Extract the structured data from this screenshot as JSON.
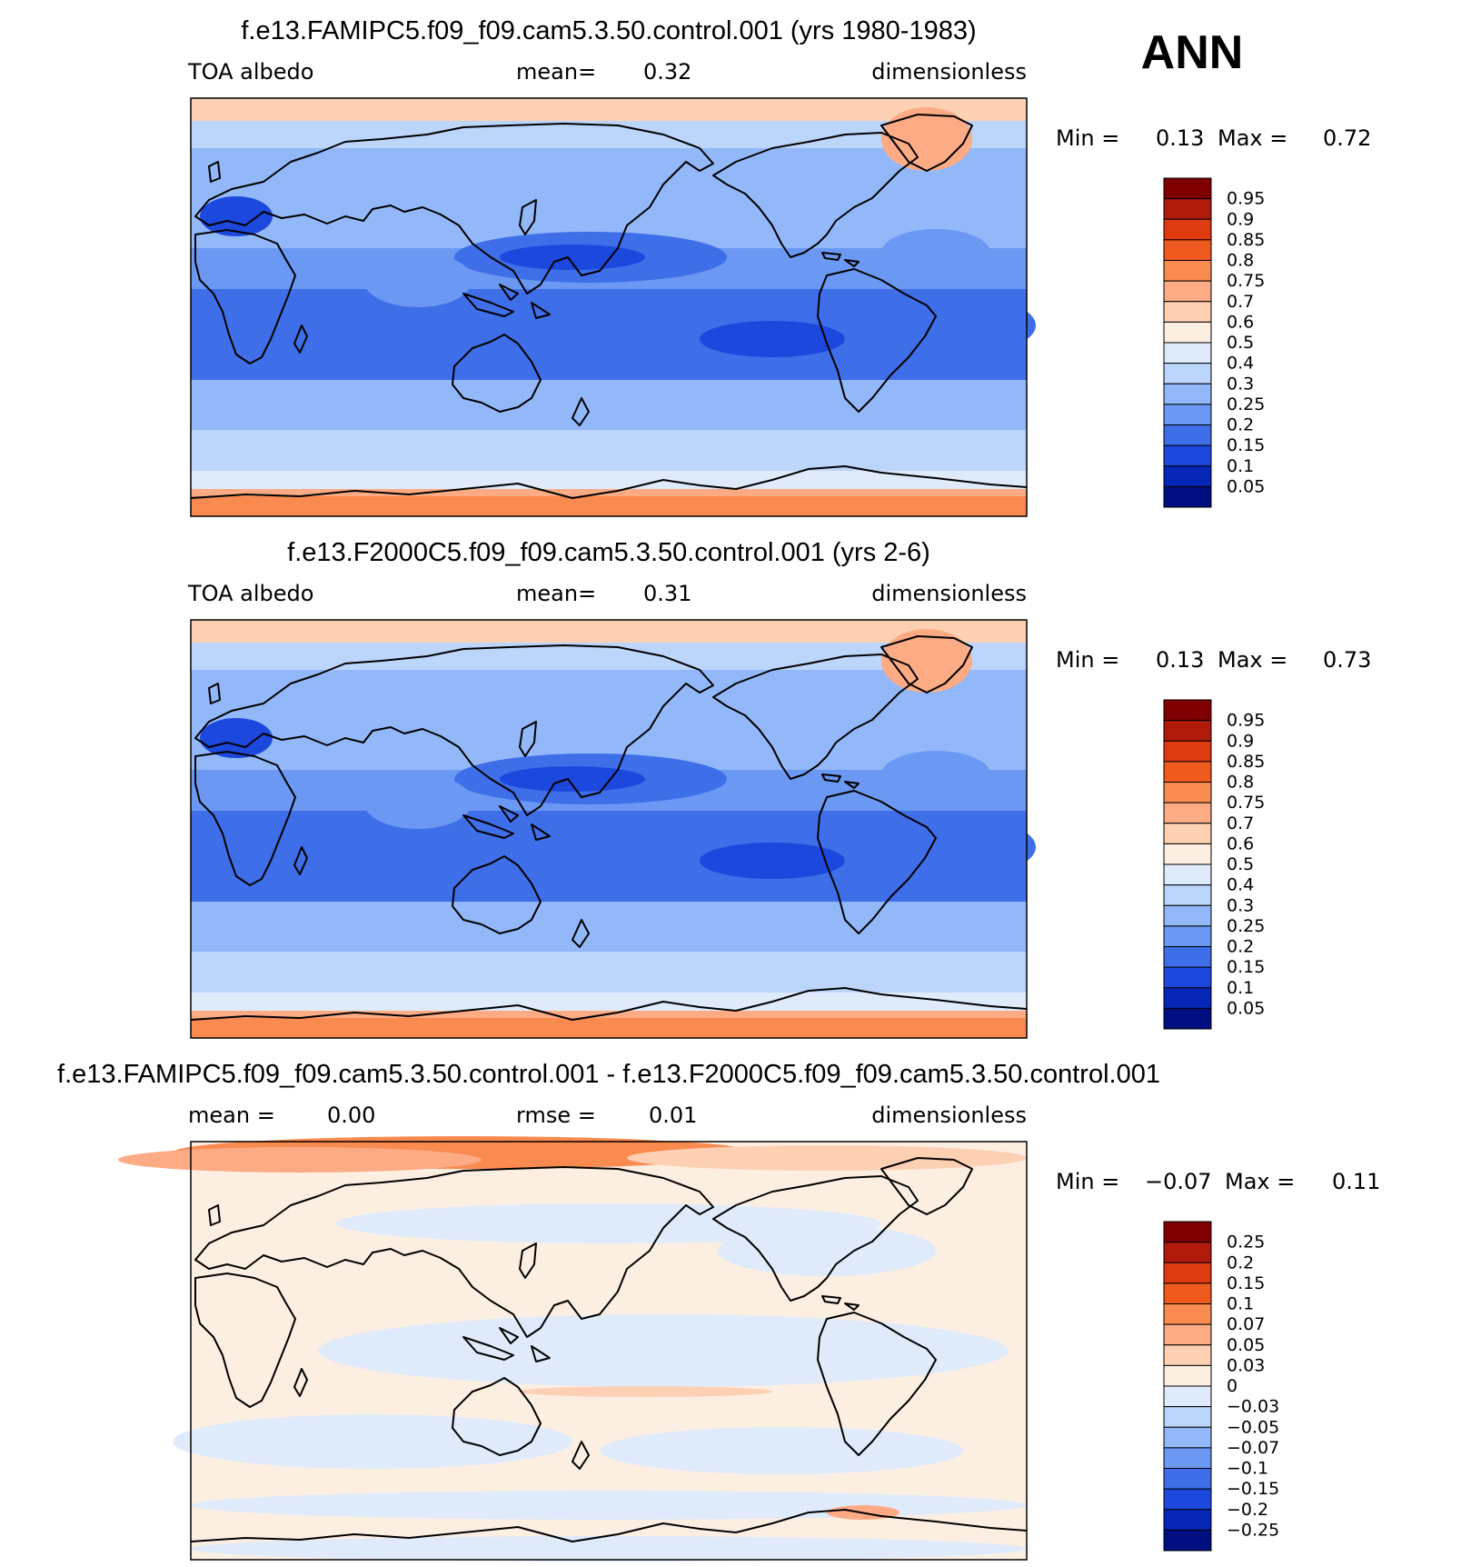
{
  "season": "ANN",
  "panels": [
    {
      "title": "f.e13.FAMIPC5.f09_f09.cam5.3.50.control.001 (yrs 1980-1983)",
      "left_label": "TOA albedo",
      "mean_label": "mean=",
      "mean_value": "0.32",
      "units": "dimensionless",
      "min_label": "Min =",
      "min_value": "0.13",
      "max_label": "Max =",
      "max_value": "0.72",
      "colorbar": [
        "0.95",
        "0.9",
        "0.85",
        "0.8",
        "0.75",
        "0.7",
        "0.6",
        "0.5",
        "0.4",
        "0.3",
        "0.25",
        "0.2",
        "0.15",
        "0.1",
        "0.05"
      ]
    },
    {
      "title": "f.e13.F2000C5.f09_f09.cam5.3.50.control.001 (yrs 2-6)",
      "left_label": "TOA albedo",
      "mean_label": "mean=",
      "mean_value": "0.31",
      "units": "dimensionless",
      "min_label": "Min =",
      "min_value": "0.13",
      "max_label": "Max =",
      "max_value": "0.73",
      "colorbar": [
        "0.95",
        "0.9",
        "0.85",
        "0.8",
        "0.75",
        "0.7",
        "0.6",
        "0.5",
        "0.4",
        "0.3",
        "0.25",
        "0.2",
        "0.15",
        "0.1",
        "0.05"
      ]
    },
    {
      "title": "f.e13.FAMIPC5.f09_f09.cam5.3.50.control.001 - f.e13.F2000C5.f09_f09.cam5.3.50.control.001",
      "left_label": "mean =",
      "left_value": "0.00",
      "mean_label": "rmse =",
      "mean_value": "0.01",
      "units": "dimensionless",
      "min_label": "Min =",
      "min_value": "−0.07",
      "max_label": "Max =",
      "max_value": "0.11",
      "colorbar": [
        "0.25",
        "0.2",
        "0.15",
        "0.1",
        "0.07",
        "0.05",
        "0.03",
        "0",
        "−0.03",
        "−0.05",
        "−0.07",
        "−0.1",
        "−0.15",
        "−0.2",
        "−0.25"
      ]
    }
  ],
  "palettes": {
    "absolute": [
      "#7f0000",
      "#b01a0b",
      "#e03a10",
      "#f05a1e",
      "#f98a50",
      "#fcab85",
      "#fdd0b4",
      "#fdeee2",
      "#dfebfb",
      "#bcd5fb",
      "#93b8f9",
      "#6a98f3",
      "#3f6ee9",
      "#1c48dd",
      "#0626b8",
      "#000f80"
    ],
    "difference": [
      "#7f0000",
      "#b01a0b",
      "#e03a10",
      "#f05a1e",
      "#f98a50",
      "#fcab85",
      "#fdd0b4",
      "#fdeee2",
      "#dfebfb",
      "#bcd5fb",
      "#93b8f9",
      "#6a98f3",
      "#3f6ee9",
      "#1c48dd",
      "#0626b8",
      "#000f80"
    ]
  }
}
